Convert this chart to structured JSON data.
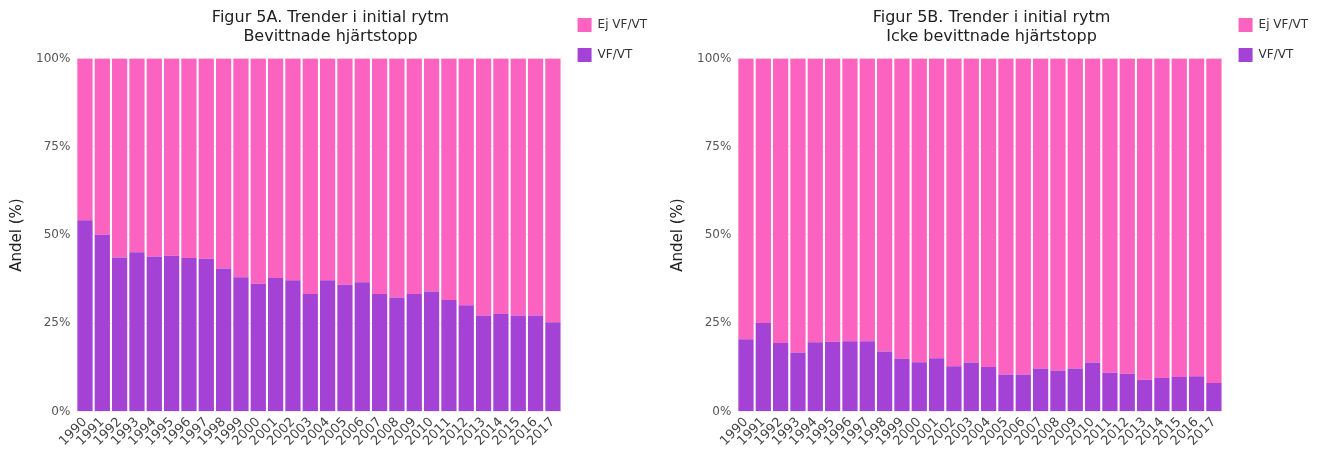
{
  "chart_data": [
    {
      "type": "bar",
      "title": "Figur 5A. Trender i initial rytm",
      "subtitle": "Bevittnade hjärtstopp",
      "ylabel": "Andel (%)",
      "categories": [
        "1990",
        "1991",
        "1992",
        "1993",
        "1994",
        "1995",
        "1996",
        "1997",
        "1998",
        "1999",
        "2000",
        "2001",
        "2002",
        "2003",
        "2004",
        "2005",
        "2006",
        "2007",
        "2008",
        "2009",
        "2010",
        "2011",
        "2012",
        "2013",
        "2014",
        "2015",
        "2016",
        "2017"
      ],
      "stacked": true,
      "ylim": [
        0,
        100
      ],
      "yticks": [
        {
          "value": 0,
          "label": "0%"
        },
        {
          "value": 25,
          "label": "25%"
        },
        {
          "value": 50,
          "label": "50%"
        },
        {
          "value": 75,
          "label": "75%"
        },
        {
          "value": 100,
          "label": "100%"
        }
      ],
      "grid": true,
      "legend": "top right",
      "series": [
        {
          "name": "VF/VT",
          "color": "#a342d4",
          "values": [
            54.2,
            50.1,
            43.6,
            45.1,
            43.9,
            44.1,
            43.5,
            43.3,
            40.5,
            38.0,
            36.2,
            37.8,
            37.2,
            33.3,
            37.2,
            35.9,
            36.6,
            33.3,
            32.3,
            33.3,
            34.0,
            31.6,
            30.1,
            27.2,
            27.6,
            27.2,
            27.2,
            25.3
          ]
        },
        {
          "name": "Ej VF/VT",
          "color": "#fc62c0",
          "values": [
            45.8,
            49.9,
            56.4,
            54.9,
            56.1,
            55.9,
            56.5,
            56.7,
            59.5,
            62.0,
            63.8,
            62.2,
            62.8,
            66.7,
            62.8,
            64.1,
            63.4,
            66.7,
            67.7,
            66.7,
            66.0,
            68.4,
            69.9,
            72.8,
            72.4,
            72.8,
            72.8,
            74.7
          ]
        }
      ]
    },
    {
      "type": "bar",
      "title": "Figur 5B. Trender i initial rytm",
      "subtitle": "Icke bevittnade hjärtstopp",
      "ylabel": "Andel (%)",
      "categories": [
        "1990",
        "1991",
        "1992",
        "1993",
        "1994",
        "1995",
        "1996",
        "1997",
        "1998",
        "1999",
        "2000",
        "2001",
        "2002",
        "2003",
        "2004",
        "2005",
        "2006",
        "2007",
        "2008",
        "2009",
        "2010",
        "2011",
        "2012",
        "2013",
        "2014",
        "2015",
        "2016",
        "2017"
      ],
      "stacked": true,
      "ylim": [
        0,
        100
      ],
      "yticks": [
        {
          "value": 0,
          "label": "0%"
        },
        {
          "value": 25,
          "label": "25%"
        },
        {
          "value": 50,
          "label": "50%"
        },
        {
          "value": 75,
          "label": "75%"
        },
        {
          "value": 100,
          "label": "100%"
        }
      ],
      "grid": true,
      "legend": "top right",
      "series": [
        {
          "name": "VF/VT",
          "color": "#a342d4",
          "values": [
            20.5,
            25.1,
            19.4,
            16.7,
            19.6,
            19.8,
            19.9,
            19.9,
            17.0,
            15.0,
            14.0,
            15.1,
            12.8,
            13.9,
            12.6,
            10.5,
            10.5,
            12.2,
            11.6,
            12.2,
            13.9,
            11.0,
            10.7,
            9.0,
            9.5,
            9.8,
            10.0,
            8.1
          ]
        },
        {
          "name": "Ej VF/VT",
          "color": "#fc62c0",
          "values": [
            79.5,
            74.9,
            80.6,
            83.3,
            80.4,
            80.2,
            80.1,
            80.1,
            83.0,
            85.0,
            86.0,
            84.9,
            87.2,
            86.1,
            87.4,
            89.5,
            89.5,
            87.8,
            88.4,
            87.8,
            86.1,
            89.0,
            89.3,
            91.0,
            90.5,
            90.2,
            90.0,
            91.9
          ]
        }
      ]
    }
  ]
}
